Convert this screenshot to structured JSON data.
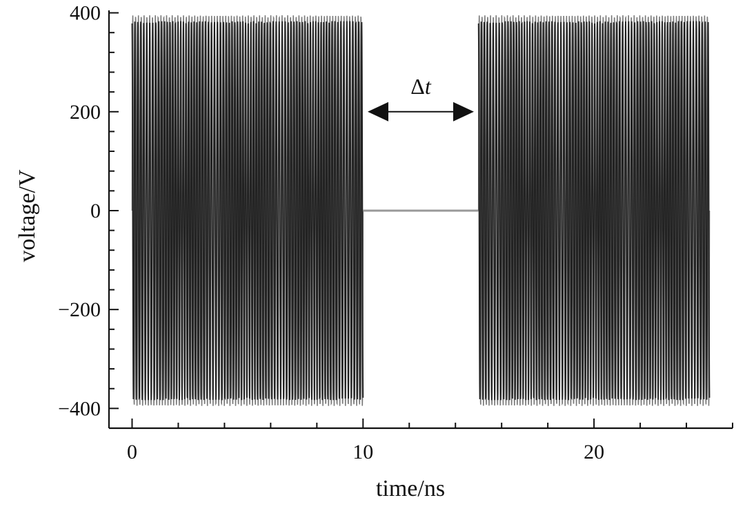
{
  "chart_data": {
    "type": "line",
    "title": "",
    "xlabel": "time/ns",
    "ylabel": "voltage/V",
    "xlim": [
      -1,
      26
    ],
    "ylim": [
      -440,
      405
    ],
    "x_ticks": [
      {
        "value": 0,
        "label": "0"
      },
      {
        "value": 10,
        "label": "10"
      },
      {
        "value": 20,
        "label": "20"
      }
    ],
    "y_ticks": [
      {
        "value": 400,
        "label": "400"
      },
      {
        "value": 200,
        "label": "200"
      },
      {
        "value": 0,
        "label": "0"
      },
      {
        "value": -200,
        "label": "−200"
      },
      {
        "value": -400,
        "label": "−400"
      }
    ],
    "series": [
      {
        "segment": "pulse-1",
        "t_start": 0,
        "t_end": 10,
        "amplitude": 395,
        "color": "#222222",
        "style": "oscillation"
      },
      {
        "segment": "gap",
        "t_start": 10,
        "t_end": 15,
        "amplitude": 0,
        "color": "#999999",
        "style": "flat"
      },
      {
        "segment": "pulse-2",
        "t_start": 15,
        "t_end": 25,
        "amplitude": 395,
        "color": "#222222",
        "style": "oscillation"
      }
    ],
    "annotations": [
      {
        "text": "Δt",
        "type": "double-arrow",
        "x_from": 10.2,
        "x_to": 14.8,
        "y": 200
      }
    ],
    "grid": false,
    "legend": "none"
  }
}
